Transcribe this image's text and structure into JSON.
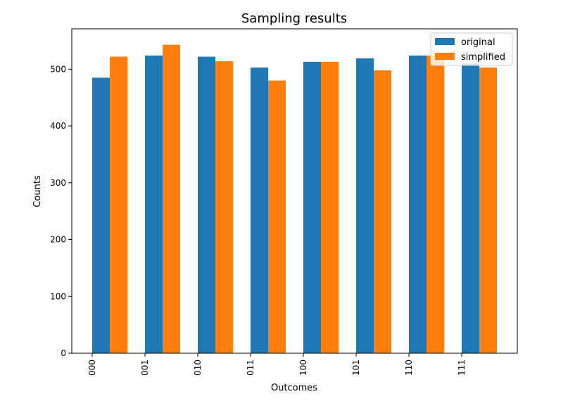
{
  "chart_data": {
    "type": "bar",
    "title": "Sampling results",
    "xlabel": "Outcomes",
    "ylabel": "Counts",
    "categories": [
      "000",
      "001",
      "010",
      "011",
      "100",
      "101",
      "110",
      "111"
    ],
    "series": [
      {
        "name": "original",
        "color": "#1f77b4",
        "values": [
          485,
          524,
          522,
          503,
          513,
          519,
          524,
          510
        ]
      },
      {
        "name": "simplified",
        "color": "#ff7f0e",
        "values": [
          522,
          543,
          514,
          480,
          513,
          498,
          524,
          503
        ]
      }
    ],
    "ylim": [
      0,
      571
    ],
    "yticks": [
      0,
      100,
      200,
      300,
      400,
      500
    ],
    "grid": false,
    "legend_position": "top-right"
  }
}
